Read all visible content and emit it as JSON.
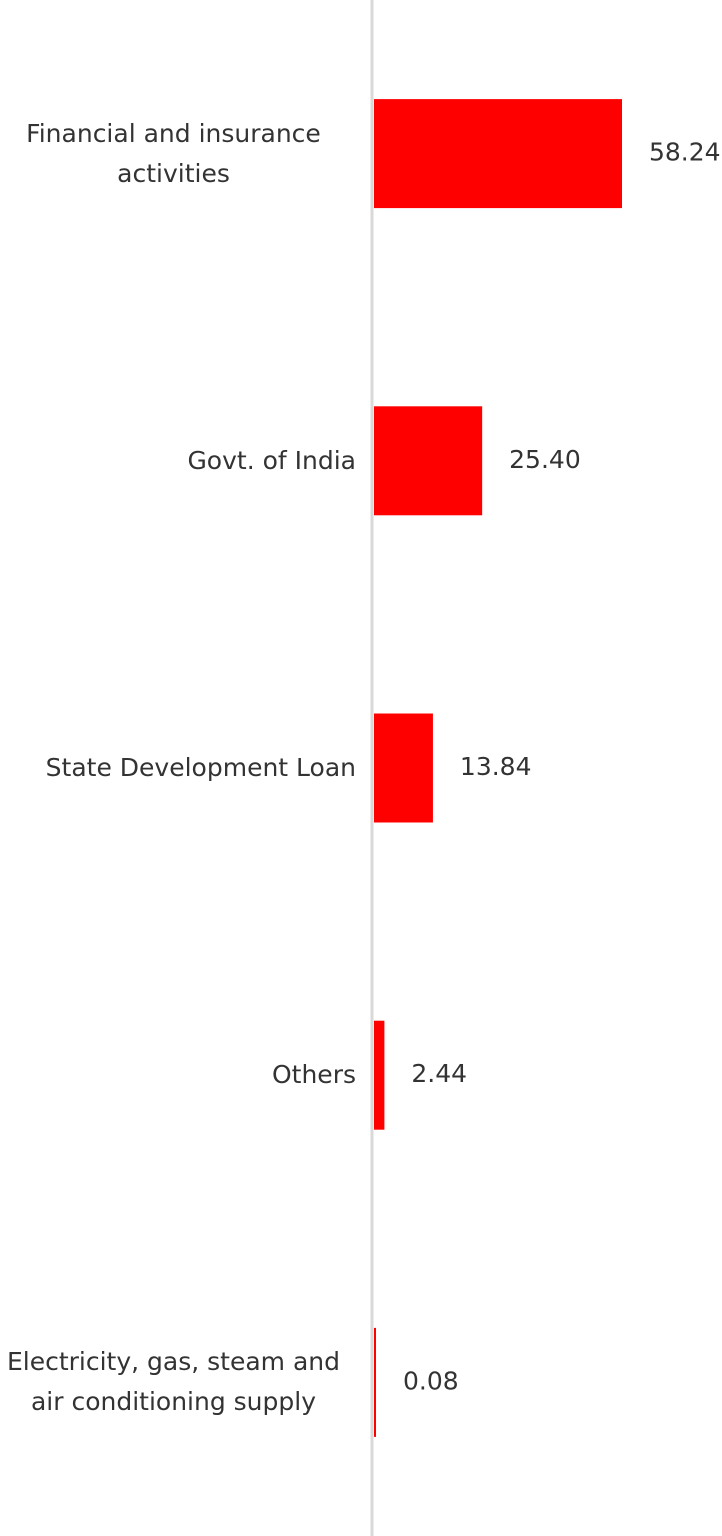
{
  "chart_data": {
    "type": "hbar",
    "categories": [
      "Financial and insurance activities",
      "Govt. of India",
      "State Development Loan",
      "Others",
      "Electricity, gas, steam and air conditioning supply"
    ],
    "values": [
      58.24,
      25.4,
      13.84,
      2.44,
      0.08
    ],
    "value_labels": [
      "58.24",
      "25.40",
      "13.84",
      "2.44",
      "0.08"
    ],
    "color": "#ff0000"
  }
}
